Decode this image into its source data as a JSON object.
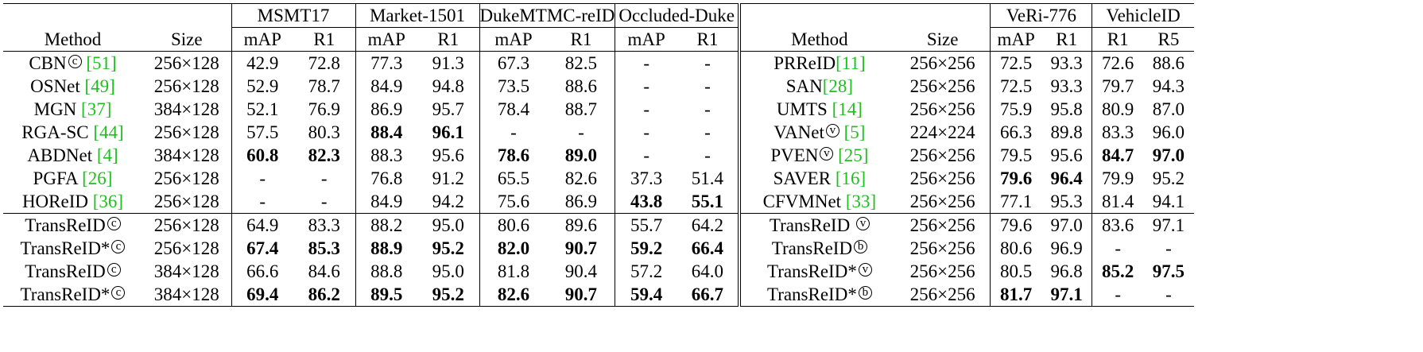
{
  "left": {
    "group_headers": [
      "MSMT17",
      "Market-1501",
      "DukeMTMC-reID",
      "Occluded-Duke"
    ],
    "col_headers": [
      "Method",
      "Size",
      "mAP",
      "R1",
      "mAP",
      "R1",
      "mAP",
      "R1",
      "mAP",
      "R1"
    ],
    "rows_a": [
      {
        "method": "CBN",
        "badge": "c",
        "cite": "[51]",
        "size": "256×128",
        "vals": [
          "42.9",
          "72.8",
          "77.3",
          "91.3",
          "67.3",
          "82.5",
          "-",
          "-"
        ],
        "bold": []
      },
      {
        "method": "OSNet ",
        "badge": "",
        "cite": "[49]",
        "size": "256×128",
        "vals": [
          "52.9",
          "78.7",
          "84.9",
          "94.8",
          "73.5",
          "88.6",
          "-",
          "-"
        ],
        "bold": []
      },
      {
        "method": "MGN ",
        "badge": "",
        "cite": "[37]",
        "size": "384×128",
        "vals": [
          "52.1",
          "76.9",
          "86.9",
          "95.7",
          "78.4",
          "88.7",
          "-",
          "-"
        ],
        "bold": []
      },
      {
        "method": "RGA-SC ",
        "badge": "",
        "cite": "[44]",
        "size": "256×128",
        "vals": [
          "57.5",
          "80.3",
          "88.4",
          "96.1",
          "-",
          "-",
          "-",
          "-"
        ],
        "bold": [
          2,
          3
        ]
      },
      {
        "method": "ABDNet ",
        "badge": "",
        "cite": "[4]",
        "size": "384×128",
        "vals": [
          "60.8",
          "82.3",
          "88.3",
          "95.6",
          "78.6",
          "89.0",
          "-",
          "-"
        ],
        "bold": [
          0,
          1,
          4,
          5
        ]
      },
      {
        "method": "PGFA ",
        "badge": "",
        "cite": "[26]",
        "size": "256×128",
        "vals": [
          "-",
          "-",
          "76.8",
          "91.2",
          "65.5",
          "82.6",
          "37.3",
          "51.4"
        ],
        "bold": []
      },
      {
        "method": "HOReID ",
        "badge": "",
        "cite": "[36]",
        "size": "256×128",
        "vals": [
          "-",
          "-",
          "84.9",
          "94.2",
          "75.6",
          "86.9",
          "43.8",
          "55.1"
        ],
        "bold": [
          6,
          7
        ]
      }
    ],
    "rows_b": [
      {
        "method": "TransReID",
        "badge": "c",
        "cite": "",
        "size": "256×128",
        "vals": [
          "64.9",
          "83.3",
          "88.2",
          "95.0",
          "80.6",
          "89.6",
          "55.7",
          "64.2"
        ],
        "bold": []
      },
      {
        "method": "TransReID*",
        "badge": "c",
        "cite": "",
        "size": "256×128",
        "vals": [
          "67.4",
          "85.3",
          "88.9",
          "95.2",
          "82.0",
          "90.7",
          "59.2",
          "66.4"
        ],
        "bold": [
          0,
          1,
          2,
          3,
          4,
          5,
          6,
          7
        ]
      },
      {
        "method": "TransReID",
        "badge": "c",
        "cite": "",
        "size": "384×128",
        "vals": [
          "66.6",
          "84.6",
          "88.8",
          "95.0",
          "81.8",
          "90.4",
          "57.2",
          "64.0"
        ],
        "bold": []
      },
      {
        "method": "TransReID*",
        "badge": "c",
        "cite": "",
        "size": "384×128",
        "vals": [
          "69.4",
          "86.2",
          "89.5",
          "95.2",
          "82.6",
          "90.7",
          "59.4",
          "66.7"
        ],
        "bold": [
          0,
          1,
          2,
          3,
          4,
          5,
          6,
          7
        ]
      }
    ]
  },
  "right": {
    "group_headers": [
      "VeRi-776",
      "VehicleID"
    ],
    "col_headers": [
      "Method",
      "Size",
      "mAP",
      "R1",
      "R1",
      "R5"
    ],
    "rows_a": [
      {
        "method": "PRReID",
        "badge": "",
        "cite": "[11]",
        "size": "256×256",
        "vals": [
          "72.5",
          "93.3",
          "72.6",
          "88.6"
        ],
        "bold": []
      },
      {
        "method": "SAN",
        "badge": "",
        "cite": "[28]",
        "size": "256×256",
        "vals": [
          "72.5",
          "93.3",
          "79.7",
          "94.3"
        ],
        "bold": []
      },
      {
        "method": "UMTS ",
        "badge": "",
        "cite": "[14]",
        "size": "256×256",
        "vals": [
          "75.9",
          "95.8",
          "80.9",
          "87.0"
        ],
        "bold": []
      },
      {
        "method": "VANet",
        "badge": "v",
        "cite": "[5]",
        "size": "224×224",
        "vals": [
          "66.3",
          "89.8",
          "83.3",
          "96.0"
        ],
        "bold": []
      },
      {
        "method": "PVEN",
        "badge": "v",
        "cite": "[25]",
        "size": "256×256",
        "vals": [
          "79.5",
          "95.6",
          "84.7",
          "97.0"
        ],
        "bold": [
          2,
          3
        ]
      },
      {
        "method": "SAVER ",
        "badge": "",
        "cite": "[16]",
        "size": "256×256",
        "vals": [
          "79.6",
          "96.4",
          "79.9",
          "95.2"
        ],
        "bold": [
          0,
          1
        ]
      },
      {
        "method": "CFVMNet ",
        "badge": "",
        "cite": "[33]",
        "size": "256×256",
        "vals": [
          "77.1",
          "95.3",
          "81.4",
          "94.1"
        ],
        "bold": []
      }
    ],
    "rows_b": [
      {
        "method": "TransReID ",
        "badge": "v",
        "cite": "",
        "size": "256×256",
        "vals": [
          "79.6",
          "97.0",
          "83.6",
          "97.1"
        ],
        "bold": []
      },
      {
        "method": "TransReID",
        "badge": "b",
        "cite": "",
        "size": "256×256",
        "vals": [
          "80.6",
          "96.9",
          "-",
          "-"
        ],
        "bold": []
      },
      {
        "method": "TransReID*",
        "badge": "v",
        "cite": "",
        "size": "256×256",
        "vals": [
          "80.5",
          "96.8",
          "85.2",
          "97.5"
        ],
        "bold": [
          2,
          3
        ]
      },
      {
        "method": "TransReID*",
        "badge": "b",
        "cite": "",
        "size": "256×256",
        "vals": [
          "81.7",
          "97.1",
          "-",
          "-"
        ],
        "bold": [
          0,
          1
        ]
      }
    ]
  }
}
